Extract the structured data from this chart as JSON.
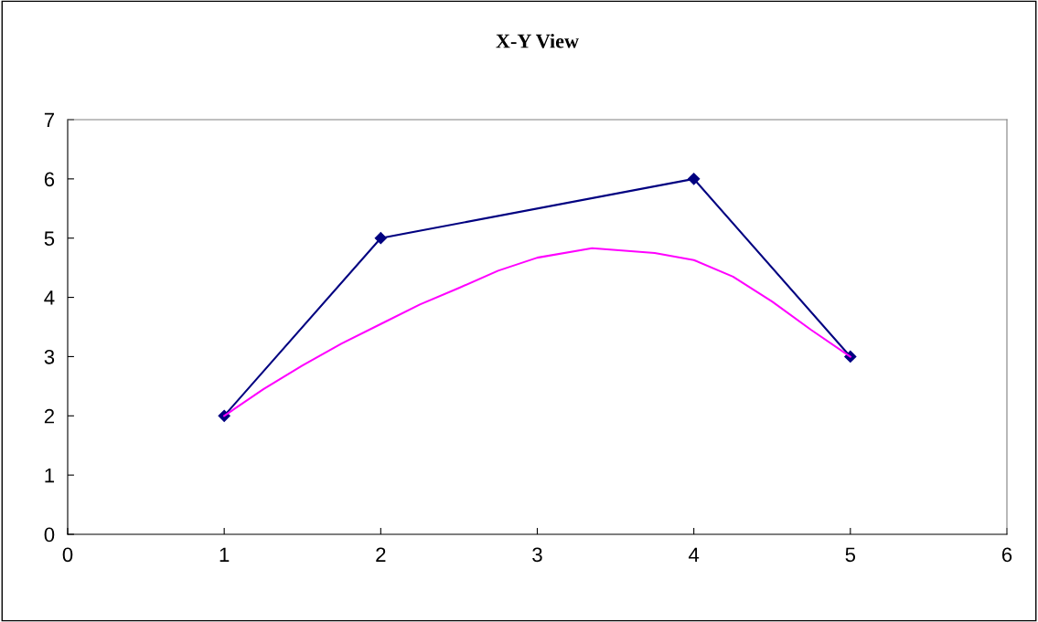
{
  "chart_data": {
    "type": "line",
    "title": "X-Y View",
    "series": [
      {
        "color": "#000080",
        "marker": "diamond",
        "x": [
          1,
          2,
          4,
          5
        ],
        "values": [
          2,
          5,
          6,
          3
        ]
      },
      {
        "color": "#ff00ff",
        "marker": "none",
        "x": [
          1,
          1.25,
          1.5,
          1.75,
          2,
          2.25,
          2.5,
          2.75,
          3,
          3.35,
          3.75,
          4,
          4.25,
          4.5,
          4.75,
          5
        ],
        "values": [
          2,
          2.45,
          2.85,
          3.22,
          3.55,
          3.88,
          4.16,
          4.45,
          4.67,
          4.83,
          4.75,
          4.63,
          4.35,
          3.93,
          3.45,
          3
        ]
      }
    ],
    "xlim": [
      0,
      6
    ],
    "xticks": [
      0,
      1,
      2,
      3,
      4,
      5,
      6
    ],
    "ylim": [
      0,
      7
    ],
    "yticks": [
      0,
      1,
      2,
      3,
      4,
      5,
      6,
      7
    ],
    "grid": false,
    "legend": false
  }
}
